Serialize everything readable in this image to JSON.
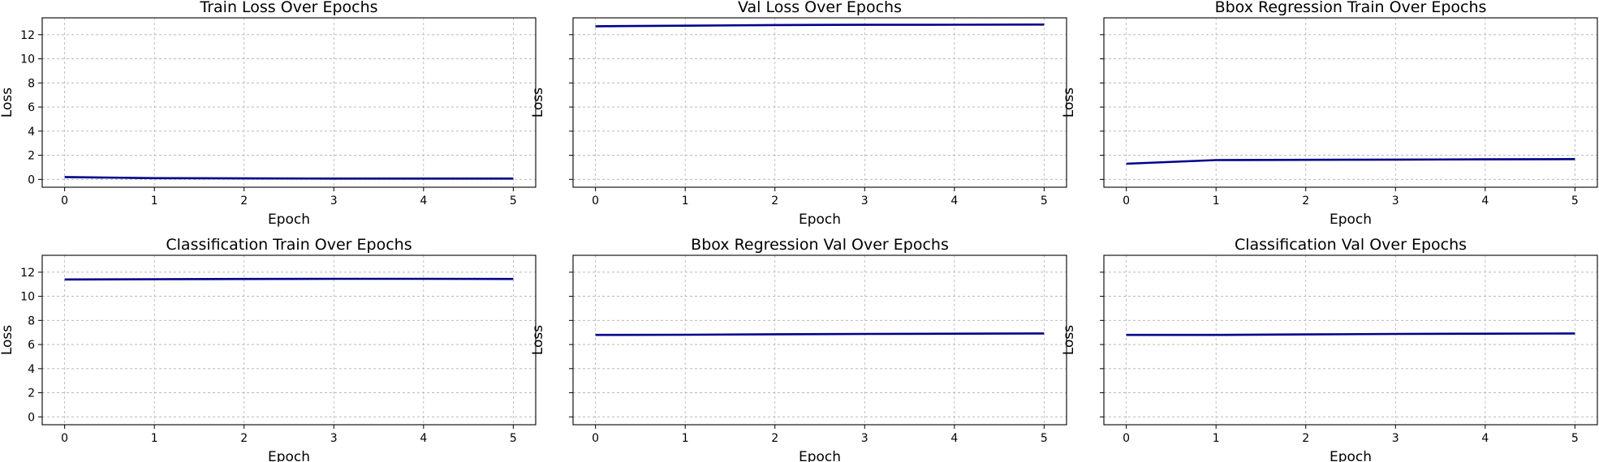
{
  "style": {
    "line_color": "#00008b",
    "grid_color": "#b0b0b0"
  },
  "chart_data": [
    {
      "type": "line",
      "title": "Train Loss Over Epochs",
      "xlabel": "Epoch",
      "ylabel": "Loss",
      "x": [
        0,
        1,
        2,
        3,
        4,
        5
      ],
      "y": [
        0.2,
        0.1,
        0.08,
        0.07,
        0.07,
        0.07
      ],
      "xlim": [
        -0.25,
        5.25
      ],
      "ylim": [
        -0.65,
        13.4
      ],
      "xticks": [
        0,
        1,
        2,
        3,
        4,
        5
      ],
      "yticks": [
        0,
        2,
        4,
        6,
        8,
        10,
        12
      ],
      "show_yticklabels": true,
      "grid": true
    },
    {
      "type": "line",
      "title": "Val Loss Over Epochs",
      "xlabel": "Epoch",
      "ylabel": "Loss",
      "x": [
        0,
        1,
        2,
        3,
        4,
        5
      ],
      "y": [
        12.7,
        12.75,
        12.8,
        12.82,
        12.83,
        12.84
      ],
      "xlim": [
        -0.25,
        5.25
      ],
      "ylim": [
        -0.65,
        13.4
      ],
      "xticks": [
        0,
        1,
        2,
        3,
        4,
        5
      ],
      "yticks": [
        0,
        2,
        4,
        6,
        8,
        10,
        12
      ],
      "show_yticklabels": false,
      "grid": true
    },
    {
      "type": "line",
      "title": "Bbox Regression Train Over Epochs",
      "xlabel": "Epoch",
      "ylabel": "Loss",
      "x": [
        0,
        1,
        2,
        3,
        4,
        5
      ],
      "y": [
        1.3,
        1.6,
        1.62,
        1.64,
        1.66,
        1.68
      ],
      "xlim": [
        -0.25,
        5.25
      ],
      "ylim": [
        -0.65,
        13.4
      ],
      "xticks": [
        0,
        1,
        2,
        3,
        4,
        5
      ],
      "yticks": [
        0,
        2,
        4,
        6,
        8,
        10,
        12
      ],
      "show_yticklabels": false,
      "grid": true
    },
    {
      "type": "line",
      "title": "Classification Train Over Epochs",
      "xlabel": "Epoch",
      "ylabel": "Loss",
      "x": [
        0,
        1,
        2,
        3,
        4,
        5
      ],
      "y": [
        11.4,
        11.42,
        11.44,
        11.45,
        11.45,
        11.44
      ],
      "xlim": [
        -0.25,
        5.25
      ],
      "ylim": [
        -0.65,
        13.4
      ],
      "xticks": [
        0,
        1,
        2,
        3,
        4,
        5
      ],
      "yticks": [
        0,
        2,
        4,
        6,
        8,
        10,
        12
      ],
      "show_yticklabels": true,
      "grid": true
    },
    {
      "type": "line",
      "title": "Bbox Regression Val Over Epochs",
      "xlabel": "Epoch",
      "ylabel": "Loss",
      "x": [
        0,
        1,
        2,
        3,
        4,
        5
      ],
      "y": [
        6.8,
        6.81,
        6.85,
        6.88,
        6.9,
        6.92
      ],
      "xlim": [
        -0.25,
        5.25
      ],
      "ylim": [
        -0.65,
        13.4
      ],
      "xticks": [
        0,
        1,
        2,
        3,
        4,
        5
      ],
      "yticks": [
        0,
        2,
        4,
        6,
        8,
        10,
        12
      ],
      "show_yticklabels": false,
      "grid": true
    },
    {
      "type": "line",
      "title": "Classification Val Over Epochs",
      "xlabel": "Epoch",
      "ylabel": "Loss",
      "x": [
        0,
        1,
        2,
        3,
        4,
        5
      ],
      "y": [
        6.8,
        6.8,
        6.84,
        6.88,
        6.9,
        6.92
      ],
      "xlim": [
        -0.25,
        5.25
      ],
      "ylim": [
        -0.65,
        13.4
      ],
      "xticks": [
        0,
        1,
        2,
        3,
        4,
        5
      ],
      "yticks": [
        0,
        2,
        4,
        6,
        8,
        10,
        12
      ],
      "show_yticklabels": false,
      "grid": true
    }
  ]
}
